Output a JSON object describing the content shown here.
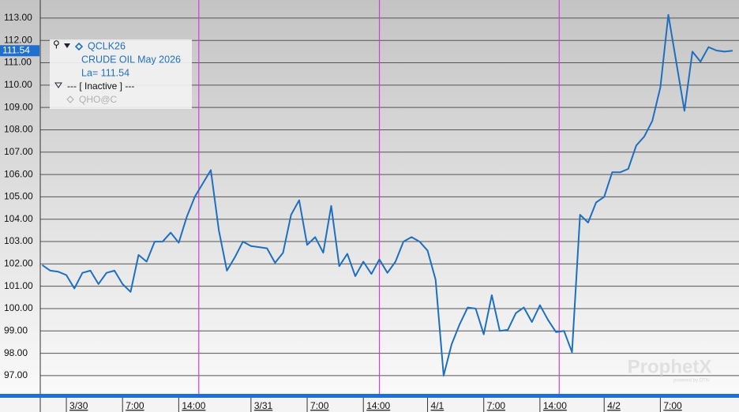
{
  "chart_data": {
    "type": "line",
    "series": [
      {
        "name": "QCLK26",
        "color": "#1f6fc0",
        "values": [
          101.95,
          101.7,
          101.65,
          101.5,
          100.9,
          101.6,
          101.7,
          101.1,
          101.6,
          101.7,
          101.1,
          100.75,
          102.4,
          102.1,
          103.0,
          103.0,
          103.4,
          102.95,
          104.1,
          105.0,
          105.6,
          106.2,
          103.5,
          101.7,
          102.3,
          103.0,
          102.8,
          102.75,
          102.7,
          102.05,
          102.5,
          104.2,
          104.85,
          102.85,
          103.2,
          102.5,
          104.6,
          101.9,
          102.45,
          101.45,
          102.1,
          101.55,
          102.2,
          101.6,
          102.1,
          103.0,
          103.2,
          103.0,
          102.6,
          101.3,
          97.0,
          98.4,
          99.3,
          100.05,
          100.0,
          98.85,
          100.6,
          99.0,
          99.05,
          99.8,
          100.05,
          99.4,
          100.15,
          99.5,
          98.95,
          99.0,
          98.05,
          104.2,
          103.85,
          104.75,
          105.0,
          106.1,
          106.1,
          106.25,
          107.3,
          107.7,
          108.4,
          109.9,
          113.15,
          111.0,
          108.85,
          111.5,
          111.05,
          111.7,
          111.55,
          111.5,
          111.54
        ]
      }
    ],
    "x": [
      0,
      1,
      2,
      3,
      4,
      5,
      6,
      7,
      8,
      9,
      10,
      11,
      12,
      13,
      14,
      15,
      16,
      17,
      18,
      19,
      20,
      21,
      22,
      23,
      24,
      25,
      26,
      27,
      28,
      29,
      30,
      31,
      32,
      33,
      34,
      35,
      36,
      37,
      38,
      39,
      40,
      41,
      42,
      43,
      44,
      45,
      46,
      47,
      48,
      49,
      50,
      51,
      52,
      53,
      54,
      55,
      56,
      57,
      58,
      59,
      60,
      61,
      62,
      63,
      64,
      65,
      66,
      67,
      68,
      69,
      70,
      71,
      72,
      73,
      74,
      75,
      76,
      77,
      78,
      79,
      80,
      81,
      82,
      83,
      84,
      85,
      86
    ],
    "xlim": [
      -0.25,
      86.8
    ],
    "xticks": [
      {
        "value": 3,
        "label": "3/30"
      },
      {
        "value": 10,
        "label": "7:00"
      },
      {
        "value": 17,
        "label": "14:00"
      },
      {
        "value": 26,
        "label": "3/31"
      },
      {
        "value": 33,
        "label": "7:00"
      },
      {
        "value": 40,
        "label": "14:00"
      },
      {
        "value": 48,
        "label": "4/1"
      },
      {
        "value": 55,
        "label": "7:00"
      },
      {
        "value": 62,
        "label": "14:00"
      },
      {
        "value": 70,
        "label": "4/2"
      },
      {
        "value": 77,
        "label": "7:00"
      }
    ],
    "session_breaks": [
      19.5,
      42,
      64.4
    ],
    "ylim": [
      96.15,
      113.81
    ],
    "yticks": [
      {
        "value": 97,
        "label": "97.00"
      },
      {
        "value": 98,
        "label": "98.00"
      },
      {
        "value": 99,
        "label": "99.00"
      },
      {
        "value": 100,
        "label": "100.00"
      },
      {
        "value": 101,
        "label": "101.00"
      },
      {
        "value": 102,
        "label": "102.00"
      },
      {
        "value": 103,
        "label": "103.00"
      },
      {
        "value": 104,
        "label": "104.00"
      },
      {
        "value": 105,
        "label": "105.00"
      },
      {
        "value": 106,
        "label": "106.00"
      },
      {
        "value": 107,
        "label": "107.00"
      },
      {
        "value": 108,
        "label": "108.00"
      },
      {
        "value": 109,
        "label": "109.00"
      },
      {
        "value": 110,
        "label": "110.00"
      },
      {
        "value": 111,
        "label": "111.00"
      },
      {
        "value": 112,
        "label": "112.00"
      },
      {
        "value": 113,
        "label": "113.00"
      }
    ],
    "last_price": {
      "value": 111.54,
      "label": "111.54"
    },
    "grid": true,
    "legend": {
      "symbol": "QCLK26",
      "description": "CRUDE OIL May 2026",
      "last": "La= 111.54",
      "inactive": "--- [ Inactive ] ---",
      "inactive_symbol": "QHO@C"
    },
    "watermark": {
      "brand": "ProphetX",
      "tagline": "powered by DTN"
    }
  }
}
